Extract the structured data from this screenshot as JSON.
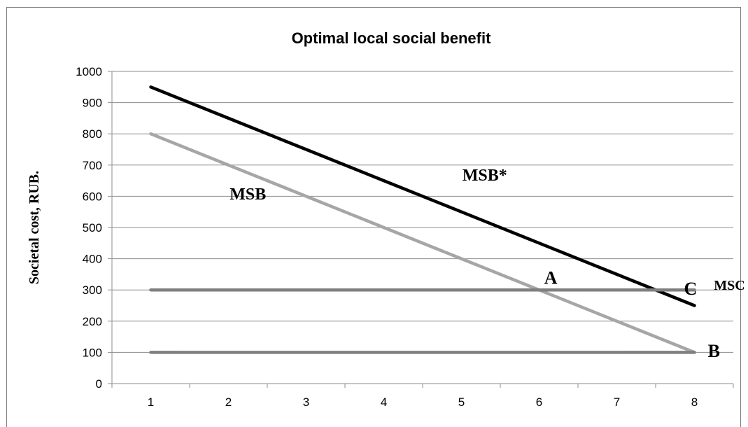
{
  "chart_data": {
    "type": "line",
    "title": "Optimal local social benefit",
    "xlabel": "",
    "ylabel": "Societal cost, RUB.",
    "categories": [
      "1",
      "2",
      "3",
      "4",
      "5",
      "6",
      "7",
      "8"
    ],
    "xlim": [
      0.5,
      8.5
    ],
    "ylim": [
      0,
      1000
    ],
    "yticks": [
      0,
      100,
      200,
      300,
      400,
      500,
      600,
      700,
      800,
      900,
      1000
    ],
    "grid": true,
    "legend": "none",
    "series": [
      {
        "key": "msb_star",
        "values": [
          950,
          850,
          750,
          650,
          550,
          450,
          350,
          250
        ],
        "color": "#000000"
      },
      {
        "key": "msb",
        "values": [
          800,
          700,
          600,
          500,
          400,
          300,
          200,
          100
        ],
        "color": "#a6a6a6"
      },
      {
        "key": "msc",
        "values": [
          300,
          300,
          300,
          300,
          300,
          300,
          300,
          300
        ],
        "color": "#7f7f7f"
      },
      {
        "key": "floor",
        "values": [
          100,
          100,
          100,
          100,
          100,
          100,
          100,
          100
        ],
        "color": "#7f7f7f"
      }
    ],
    "annotations": [
      {
        "key": "msb_star_label",
        "text": "MSB*",
        "x": 5.3,
        "y": 650,
        "size": 24
      },
      {
        "key": "msb_label",
        "text": "MSB",
        "x": 2.25,
        "y": 590,
        "size": 24
      },
      {
        "key": "a_label",
        "text": "A",
        "x": 6.15,
        "y": 320,
        "size": 26
      },
      {
        "key": "c_label",
        "text": "C",
        "x": 7.95,
        "y": 285,
        "size": 26
      },
      {
        "key": "msc_label",
        "text": "MSC",
        "x": 8.45,
        "y": 300,
        "size": 20
      },
      {
        "key": "b_label",
        "text": "B",
        "x": 8.25,
        "y": 85,
        "size": 26
      }
    ]
  }
}
